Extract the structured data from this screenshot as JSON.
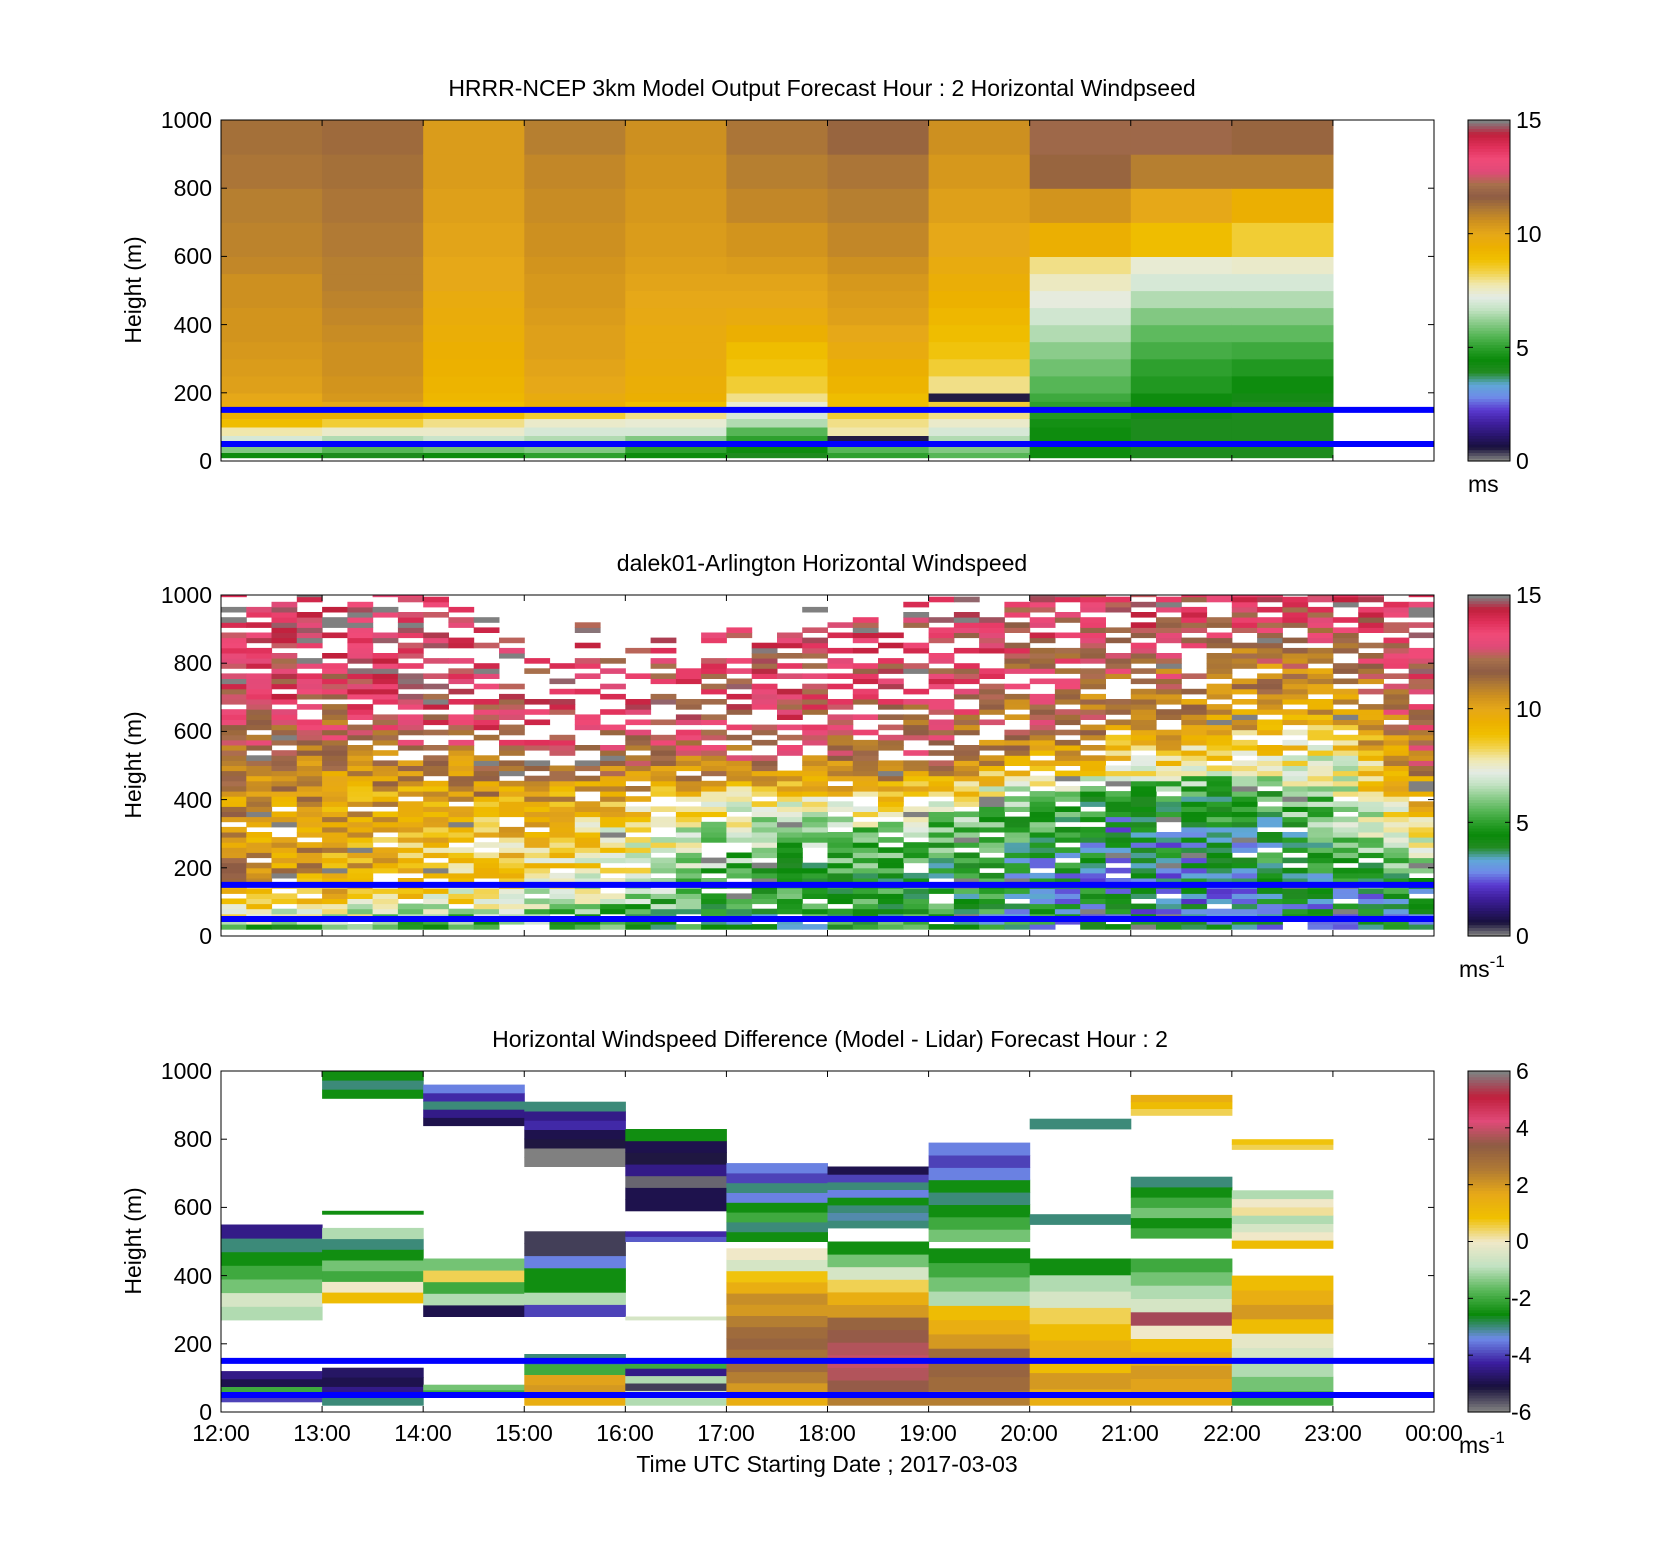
{
  "colors": {
    "wind_colormap": [
      "#808080",
      "#18103c",
      "#2a1670",
      "#4020a0",
      "#5a3ad0",
      "#6e8ae8",
      "#60a8d8",
      "#228b22",
      "#0a8a0a",
      "#2ea02e",
      "#5ab85a",
      "#8ccc8c",
      "#c2e2c2",
      "#e4ece4",
      "#f0e8b0",
      "#f2d24a",
      "#f0c000",
      "#ecb000",
      "#e6a818",
      "#d0921e",
      "#b07a34",
      "#8e5c44",
      "#a8704c",
      "#e04a78",
      "#f04a78",
      "#e0305a",
      "#c0203c",
      "#808080"
    ],
    "diff_colormap": [
      "#808080",
      "#18103c",
      "#3c1ea0",
      "#6e8ae8",
      "#0a8a0a",
      "#5ab85a",
      "#c2e2c2",
      "#f0e8c8",
      "#f0c000",
      "#e6a818",
      "#b07a34",
      "#8e5c44",
      "#e04a78",
      "#c0203c",
      "#808080"
    ],
    "reference_lines": "#0000ff"
  },
  "chart_data": [
    {
      "type": "heatmap",
      "title": "HRRR-NCEP 3km Model Output   Forecast Hour : 2 Horizontal Windpseed",
      "xlabel": "",
      "ylabel": "Height (m)",
      "xlim": [
        12,
        24
      ],
      "ylim": [
        0,
        1000
      ],
      "yticks": [
        "0",
        "200",
        "400",
        "600",
        "800",
        "1000"
      ],
      "colorbar": {
        "ticks": [
          "0",
          "5",
          "10",
          "15"
        ],
        "range": [
          0,
          15
        ],
        "unit_base": "ms",
        "unit_exp": ""
      },
      "reference_heights_m": [
        150,
        50
      ],
      "levels_m": [
        25,
        50,
        75,
        100,
        125,
        150,
        175,
        200,
        250,
        300,
        350,
        400,
        450,
        500,
        550,
        600,
        700,
        800,
        900,
        1000
      ],
      "hours": [
        12,
        13,
        14,
        15,
        16,
        17,
        18,
        19,
        20,
        21,
        22
      ],
      "values": [
        [
          4.5,
          6.0,
          7.0,
          7.8,
          9.0,
          9.5,
          9.8,
          10.0,
          10.2,
          10.3,
          10.4,
          10.5,
          10.5,
          10.6,
          10.6,
          10.8,
          10.9,
          11.0,
          11.2,
          11.3
        ],
        [
          4.0,
          5.5,
          6.5,
          7.5,
          8.5,
          9.5,
          10.0,
          10.4,
          10.5,
          10.6,
          10.6,
          10.7,
          10.8,
          10.9,
          11.0,
          11.0,
          11.1,
          11.2,
          11.3,
          11.4
        ],
        [
          4.5,
          5.8,
          6.8,
          7.5,
          8.0,
          9.0,
          9.0,
          9.2,
          9.3,
          9.4,
          9.5,
          9.6,
          9.7,
          9.8,
          10.0,
          10.0,
          10.1,
          10.2,
          10.3,
          10.3
        ],
        [
          5.0,
          6.0,
          6.5,
          7.0,
          7.5,
          8.5,
          9.6,
          9.8,
          10.0,
          10.1,
          10.2,
          10.2,
          10.3,
          10.4,
          10.4,
          10.5,
          10.6,
          10.7,
          10.8,
          11.0
        ],
        [
          4.5,
          5.0,
          6.0,
          7.0,
          7.4,
          8.0,
          9.0,
          9.5,
          9.6,
          9.7,
          9.8,
          9.8,
          9.9,
          10.0,
          10.1,
          10.2,
          10.3,
          10.4,
          10.5,
          10.6
        ],
        [
          4.0,
          4.5,
          5.0,
          5.5,
          6.5,
          7.0,
          7.4,
          8.0,
          8.5,
          8.8,
          9.0,
          9.5,
          9.8,
          10.0,
          10.1,
          10.3,
          10.5,
          10.8,
          11.0,
          11.2
        ],
        [
          5.0,
          5.5,
          0.5,
          7.8,
          8.0,
          8.5,
          9.0,
          9.0,
          9.3,
          9.5,
          9.8,
          10.0,
          10.2,
          10.3,
          10.4,
          10.6,
          10.8,
          11.0,
          11.2,
          11.5
        ],
        [
          5.5,
          6.0,
          6.5,
          7.0,
          7.5,
          8.0,
          8.5,
          0.5,
          8.0,
          8.5,
          8.8,
          9.0,
          9.2,
          9.4,
          9.6,
          9.8,
          10.0,
          10.2,
          10.4,
          10.6
        ],
        [
          4.5,
          4.5,
          4.5,
          4.5,
          4.6,
          4.8,
          5.0,
          5.2,
          5.5,
          5.8,
          6.1,
          6.5,
          6.9,
          7.3,
          7.6,
          8.0,
          9.5,
          10.5,
          11.5,
          12.0
        ],
        [
          4.0,
          4.0,
          4.0,
          4.0,
          4.0,
          4.2,
          4.3,
          4.5,
          4.8,
          5.0,
          5.3,
          5.6,
          6.0,
          6.5,
          7.0,
          7.4,
          9.0,
          10.0,
          11.0,
          12.0
        ],
        [
          4.0,
          4.0,
          4.0,
          4.0,
          4.0,
          4.0,
          4.0,
          4.2,
          4.5,
          4.8,
          5.2,
          5.6,
          6.0,
          6.5,
          7.0,
          7.5,
          8.5,
          9.5,
          11.0,
          11.5
        ]
      ]
    },
    {
      "type": "heatmap",
      "title": "dalek01-Arlington  Horizontal Windspeed",
      "xlabel": "",
      "ylabel": "Height (m)",
      "xlim": [
        12,
        24
      ],
      "ylim": [
        0,
        1000
      ],
      "yticks": [
        "0",
        "200",
        "400",
        "600",
        "800",
        "1000"
      ],
      "colorbar": {
        "ticks": [
          "0",
          "5",
          "10",
          "15"
        ],
        "range": [
          0,
          15
        ],
        "unit_base": "ms",
        "unit_exp": "-1"
      },
      "reference_heights_m": [
        150,
        50
      ],
      "profile_interval_h": 0.25,
      "level_spacing_m": 15,
      "anchor_heights_m": [
        0,
        100,
        200,
        300,
        400,
        500,
        600,
        700,
        800,
        900,
        1000
      ],
      "anchor_hours": [
        12,
        13,
        14,
        15,
        16,
        17,
        18,
        19,
        20,
        21,
        22,
        23,
        24
      ],
      "speed_profiles": [
        [
          4.5,
          9.5,
          11.0,
          10.5,
          10.5,
          11.5,
          12.5,
          13.0,
          13.5,
          14.0,
          14.0
        ],
        [
          4.5,
          9.0,
          10.0,
          10.0,
          10.0,
          11.0,
          12.0,
          13.0,
          13.5,
          14.0,
          14.0
        ],
        [
          4.5,
          8.0,
          9.0,
          9.5,
          10.0,
          11.0,
          12.5,
          13.5,
          14.0,
          14.0,
          14.0
        ],
        [
          4.5,
          7.5,
          8.5,
          9.0,
          10.0,
          11.5,
          13.0,
          13.5,
          13.5,
          14.0,
          14.0
        ],
        [
          4.5,
          6.0,
          7.5,
          8.0,
          9.5,
          11.5,
          13.0,
          13.5,
          13.5,
          13.5,
          14.0
        ],
        [
          4.5,
          4.5,
          5.5,
          6.5,
          8.5,
          11.5,
          13.0,
          13.5,
          13.5,
          13.5,
          14.0
        ],
        [
          4.5,
          4.5,
          5.0,
          6.0,
          8.5,
          11.5,
          12.5,
          13.0,
          13.5,
          13.5,
          14.0
        ],
        [
          4.5,
          4.5,
          5.0,
          5.5,
          8.5,
          11.5,
          12.0,
          13.0,
          13.5,
          13.5,
          14.0
        ],
        [
          4.0,
          4.0,
          4.0,
          4.5,
          6.5,
          9.5,
          11.5,
          12.0,
          12.5,
          13.0,
          13.5
        ],
        [
          3.5,
          3.5,
          3.5,
          3.5,
          4.5,
          8.5,
          10.5,
          11.5,
          12.0,
          13.0,
          13.5
        ],
        [
          3.5,
          3.5,
          4.0,
          4.0,
          4.5,
          7.5,
          9.5,
          11.0,
          11.5,
          12.5,
          13.5
        ],
        [
          3.5,
          3.5,
          4.5,
          5.5,
          6.5,
          7.5,
          9.0,
          10.5,
          11.5,
          12.5,
          13.5
        ],
        [
          3.5,
          4.0,
          6.0,
          8.5,
          10.5,
          12.0,
          13.0,
          13.5,
          14.0,
          14.0,
          14.5
        ]
      ],
      "coverage_top_m": [
        1000,
        1000,
        1000,
        950,
        880,
        930,
        960,
        980,
        1000,
        1000,
        1000,
        1000,
        1000
      ],
      "missing_fraction": [
        0.12,
        0.12,
        0.2,
        0.3,
        0.3,
        0.25,
        0.22,
        0.2,
        0.15,
        0.12,
        0.12,
        0.12,
        0.1
      ]
    },
    {
      "type": "heatmap",
      "title": "Horizontal Windspeed Difference (Model - Lidar) Forecast Hour : 2",
      "xlabel": "Time UTC  Starting Date ; 2017-03-03",
      "ylabel": "Height (m)",
      "xlim": [
        12,
        24
      ],
      "ylim": [
        0,
        1000
      ],
      "xticks": [
        "12:00",
        "13:00",
        "14:00",
        "15:00",
        "16:00",
        "17:00",
        "18:00",
        "19:00",
        "20:00",
        "21:00",
        "22:00",
        "23:00",
        "00:00"
      ],
      "yticks": [
        "0",
        "200",
        "400",
        "600",
        "800",
        "1000"
      ],
      "colorbar": {
        "ticks": [
          "-6",
          "-4",
          "-2",
          "0",
          "2",
          "4",
          "6"
        ],
        "range": [
          -6,
          6
        ],
        "unit_base": "ms",
        "unit_exp": "-1"
      },
      "reference_heights_m": [
        150,
        50
      ],
      "bands": [
        {
          "hour": 12,
          "bottom_m": 270,
          "top_m": 550,
          "values": [
            -1.0,
            -0.5,
            -1.5,
            -2.0,
            -2.5,
            -3.0,
            -4.5
          ]
        },
        {
          "hour": 12,
          "bottom_m": 30,
          "top_m": 120,
          "values": [
            -4.0,
            -2.0,
            -5.0,
            -4.5
          ]
        },
        {
          "hour": 13,
          "bottom_m": 320,
          "top_m": 540,
          "values": [
            1.0,
            0.0,
            -2.0,
            -1.5,
            -2.5,
            -3.0,
            -1.0
          ]
        },
        {
          "hour": 13,
          "bottom_m": 580,
          "top_m": 590,
          "values": [
            -2.5
          ]
        },
        {
          "hour": 13,
          "bottom_m": 920,
          "top_m": 1000,
          "values": [
            -2.5,
            -3.0,
            -2.5
          ]
        },
        {
          "hour": 13,
          "bottom_m": 20,
          "top_m": 130,
          "values": [
            -3.0,
            -4.5,
            -5.0,
            -4.8
          ]
        },
        {
          "hour": 14,
          "bottom_m": 840,
          "top_m": 960,
          "values": [
            -5.0,
            -4.5,
            -3.0,
            -4.2,
            -3.5
          ]
        },
        {
          "hour": 14,
          "bottom_m": 280,
          "top_m": 450,
          "values": [
            -5.0,
            -1.0,
            -2.0,
            0.5,
            -1.5
          ]
        },
        {
          "hour": 14,
          "bottom_m": 50,
          "top_m": 80,
          "values": [
            -2.0,
            -1.5
          ]
        },
        {
          "hour": 15,
          "bottom_m": 720,
          "top_m": 910,
          "values": [
            -6.0,
            -6.0,
            -5.2,
            -5.0,
            -4.2,
            -4.5,
            -3.0
          ]
        },
        {
          "hour": 15,
          "bottom_m": 280,
          "top_m": 530,
          "values": [
            -4.0,
            -1.0,
            -2.5,
            -2.5,
            -3.5,
            -5.5,
            -5.5
          ]
        },
        {
          "hour": 15,
          "bottom_m": 20,
          "top_m": 170,
          "values": [
            1.5,
            2.0,
            1.8,
            -2.0,
            -3.0
          ]
        },
        {
          "hour": 16,
          "bottom_m": 590,
          "top_m": 830,
          "values": [
            -5.0,
            -5.0,
            -5.8,
            -4.5,
            -5.2,
            -5.0,
            -2.5
          ]
        },
        {
          "hour": 16,
          "bottom_m": 500,
          "top_m": 530,
          "values": [
            -3.8,
            -4.2
          ]
        },
        {
          "hour": 16,
          "bottom_m": 270,
          "top_m": 280,
          "values": [
            -0.5
          ]
        },
        {
          "hour": 16,
          "bottom_m": 20,
          "top_m": 150,
          "values": [
            -1.0,
            -0.5,
            -5.5,
            -1.0,
            -4.5,
            -2.0
          ]
        },
        {
          "hour": 17,
          "bottom_m": 20,
          "top_m": 480,
          "values": [
            1.5,
            2.0,
            2.5,
            3.0,
            2.8,
            3.2,
            3.0,
            2.5,
            2.0,
            2.2,
            1.5,
            0.8,
            -0.5,
            0.0
          ]
        },
        {
          "hour": 17,
          "bottom_m": 500,
          "top_m": 730,
          "values": [
            -2.5,
            -3.0,
            -2.0,
            -2.5,
            -3.5,
            -3.0,
            -4.0,
            -3.5
          ]
        },
        {
          "hour": 18,
          "bottom_m": 20,
          "top_m": 500,
          "values": [
            2.5,
            3.5,
            3.8,
            4.0,
            3.8,
            3.5,
            3.2,
            2.0,
            1.5,
            0.5,
            -0.5,
            -1.5,
            -2.5
          ]
        },
        {
          "hour": 18,
          "bottom_m": 540,
          "top_m": 720,
          "values": [
            -3.0,
            -3.2,
            -3.0,
            -2.5,
            -3.5,
            -3.0,
            -4.0,
            -5.0
          ]
        },
        {
          "hour": 19,
          "bottom_m": 20,
          "top_m": 480,
          "values": [
            2.5,
            3.0,
            3.2,
            3.0,
            2.0,
            1.5,
            1.0,
            -1.0,
            -1.5,
            -2.0,
            -2.5
          ]
        },
        {
          "hour": 19,
          "bottom_m": 500,
          "top_m": 790,
          "values": [
            -1.5,
            -2.0,
            -2.5,
            -3.0,
            -2.5,
            -3.5,
            -4.0,
            -3.5
          ]
        },
        {
          "hour": 20,
          "bottom_m": 20,
          "top_m": 450,
          "values": [
            1.5,
            2.0,
            1.0,
            1.5,
            1.0,
            0.5,
            -0.5,
            -1.0,
            -2.5
          ]
        },
        {
          "hour": 20,
          "bottom_m": 550,
          "top_m": 580,
          "values": [
            -3.0
          ]
        },
        {
          "hour": 20,
          "bottom_m": 830,
          "top_m": 860,
          "values": [
            -3.0
          ]
        },
        {
          "hour": 21,
          "bottom_m": 20,
          "top_m": 450,
          "values": [
            1.5,
            1.8,
            2.0,
            1.5,
            1.0,
            0.0,
            5.5,
            -0.5,
            -1.0,
            -1.5,
            -2.0
          ]
        },
        {
          "hour": 21,
          "bottom_m": 510,
          "top_m": 690,
          "values": [
            -2.0,
            -2.5,
            -1.5,
            -2.0,
            -2.5,
            -3.0
          ]
        },
        {
          "hour": 21,
          "bottom_m": 870,
          "top_m": 930,
          "values": [
            0.5,
            1.0,
            1.5
          ]
        },
        {
          "hour": 22,
          "bottom_m": 20,
          "top_m": 400,
          "values": [
            -2.0,
            -1.5,
            -1.0,
            -0.5,
            -0.2,
            1.0,
            2.0,
            1.5,
            1.0
          ]
        },
        {
          "hour": 22,
          "bottom_m": 480,
          "top_m": 650,
          "values": [
            1.0,
            0.0,
            -0.5,
            -1.0,
            0.2,
            0.0,
            -1.0
          ]
        },
        {
          "hour": 22,
          "bottom_m": 770,
          "top_m": 800,
          "values": [
            0.5,
            0.8
          ]
        }
      ]
    }
  ]
}
